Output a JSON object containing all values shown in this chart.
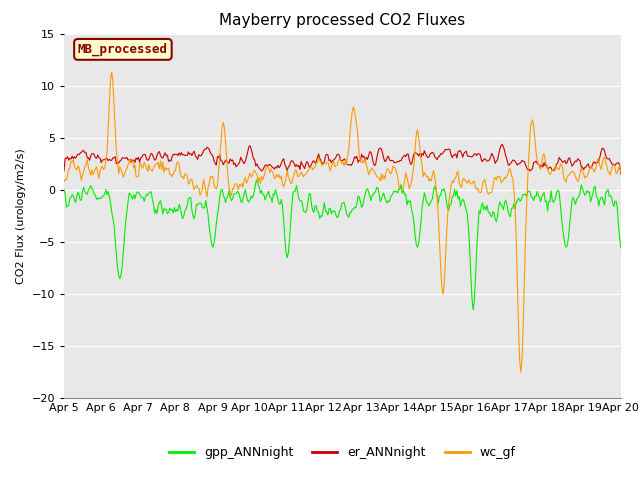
{
  "title": "Mayberry processed CO2 Fluxes",
  "ylabel": "CO2 Flux (urology/m2/s)",
  "ylim": [
    -20,
    15
  ],
  "yticks": [
    -20,
    -15,
    -10,
    -5,
    0,
    5,
    10,
    15
  ],
  "date_labels": [
    "Apr 5",
    "Apr 6",
    "Apr 7",
    "Apr 8",
    "Apr 9",
    "Apr 10",
    "Apr 11",
    "Apr 12",
    "Apr 13",
    "Apr 14",
    "Apr 15",
    "Apr 16",
    "Apr 17",
    "Apr 18",
    "Apr 19",
    "Apr 20"
  ],
  "n_points": 480,
  "legend_label": "MB_processed",
  "line_labels": [
    "gpp_ANNnight",
    "er_ANNnight",
    "wc_gf"
  ],
  "line_colors": [
    "#00ee00",
    "#cc0000",
    "#ff9900"
  ],
  "bg_color": "#e8e8e8",
  "fig_bg": "#ffffff",
  "legend_box_bg": "#ffffcc",
  "legend_box_edge": "#8b0000",
  "title_fontsize": 11,
  "label_fontsize": 8,
  "tick_fontsize": 8,
  "legend_fontsize": 9,
  "linewidth": 0.8
}
